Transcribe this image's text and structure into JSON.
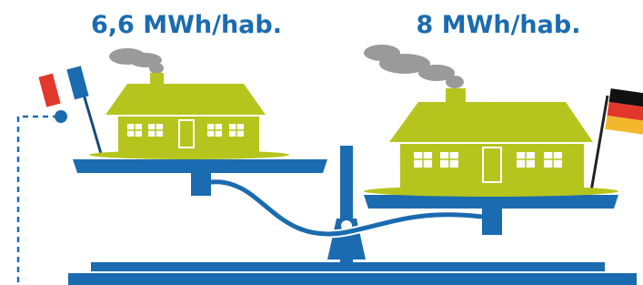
{
  "left": {
    "label": "6,6 MWh/hab."
  },
  "right": {
    "label": "8 MWh/hab."
  }
}
